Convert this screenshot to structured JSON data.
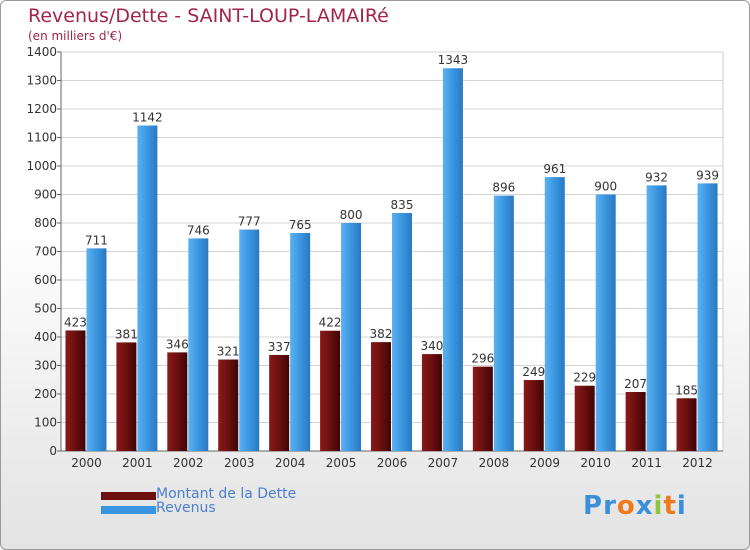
{
  "title": "Revenus/Dette - SAINT-LOUP-LAMAIRé",
  "subtitle": "(en milliers d'€)",
  "legend": [
    {
      "label": "Montant de la Dette",
      "color": "#6b0f0f"
    },
    {
      "label": "Revenus",
      "color": "#3a96e0"
    }
  ],
  "logo": {
    "text": "Proxiti",
    "letters": [
      {
        "ch": "P",
        "color": "#3a8fd8"
      },
      {
        "ch": "r",
        "color": "#3a8fd8"
      },
      {
        "ch": "o",
        "color": "#f07a1a"
      },
      {
        "ch": "x",
        "color": "#3a8fd8"
      },
      {
        "ch": "i",
        "color": "#8cc63f"
      },
      {
        "ch": "t",
        "color": "#f07a1a"
      },
      {
        "ch": "i",
        "color": "#3a8fd8"
      }
    ]
  },
  "chart_data": {
    "type": "bar",
    "categories": [
      "2000",
      "2001",
      "2002",
      "2003",
      "2004",
      "2005",
      "2006",
      "2007",
      "2008",
      "2009",
      "2010",
      "2011",
      "2012"
    ],
    "series": [
      {
        "name": "Montant de la Dette",
        "color": "#6b0f0f",
        "values": [
          423,
          381,
          346,
          321,
          337,
          422,
          382,
          340,
          296,
          249,
          229,
          207,
          185
        ]
      },
      {
        "name": "Revenus",
        "color": "#3a96e0",
        "values": [
          711,
          1142,
          746,
          777,
          765,
          800,
          835,
          1343,
          896,
          961,
          900,
          932,
          939
        ]
      }
    ],
    "ylim": [
      0,
      1400
    ],
    "yticks": [
      0,
      100,
      200,
      300,
      400,
      500,
      600,
      700,
      800,
      900,
      1000,
      1100,
      1200,
      1300,
      1400
    ],
    "grid": true,
    "legend_position": "bottom-left"
  }
}
